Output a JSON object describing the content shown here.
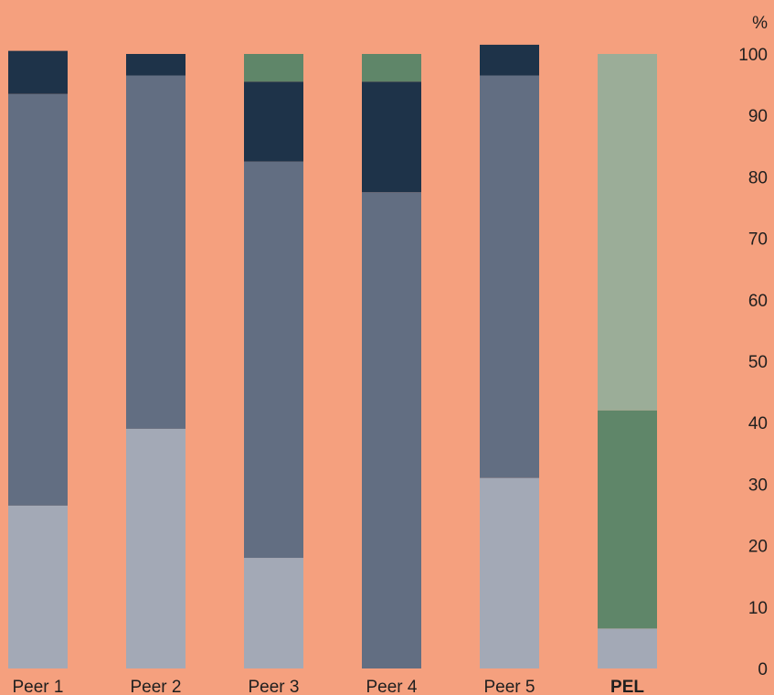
{
  "chart_data": {
    "type": "bar",
    "stacked": true,
    "orientation": "vertical",
    "background_color": "#F5A07E",
    "y_axis": {
      "position": "right",
      "unit_label": "%",
      "ticks": [
        "0",
        "10",
        "20",
        "30",
        "40",
        "50",
        "60",
        "70",
        "80",
        "90",
        "100"
      ],
      "ylim": [
        0,
        100
      ],
      "grid": false
    },
    "categories": [
      "Peer 1",
      "Peer 2",
      "Peer 3",
      "Peer 4",
      "Peer 5",
      "PEL"
    ],
    "bold_categories": [
      "PEL"
    ],
    "legend": "none",
    "series": [
      {
        "color": "#A3A9B6",
        "values": [
          26.5,
          39,
          18,
          0,
          31,
          6.5
        ]
      },
      {
        "color": "#626E82",
        "values": [
          67,
          57.5,
          64.5,
          77.5,
          65.5,
          0
        ]
      },
      {
        "color": "#1E3349",
        "values": [
          7,
          3.5,
          13,
          18,
          5,
          0
        ]
      },
      {
        "color": "#5F8669",
        "values": [
          0,
          0,
          4.5,
          4.5,
          0,
          35.5
        ]
      },
      {
        "color": "#9BAD98",
        "values": [
          0,
          0,
          0,
          0,
          0,
          58
        ]
      }
    ]
  }
}
